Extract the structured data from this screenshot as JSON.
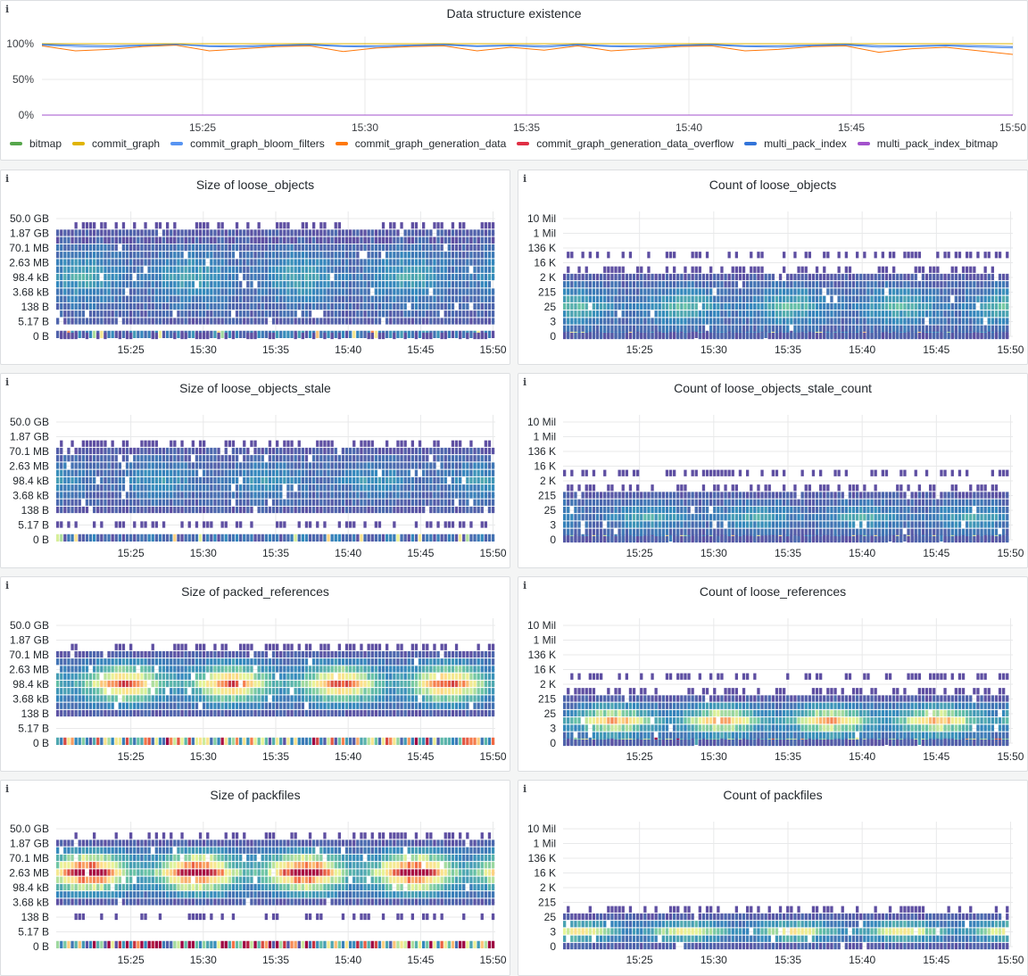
{
  "time_ticks": [
    "15:25",
    "15:30",
    "15:35",
    "15:40",
    "15:45",
    "15:50"
  ],
  "top_panel": {
    "title": "Data structure existence",
    "info_icon": "i",
    "chart_data": {
      "type": "line",
      "title": "Data structure existence",
      "y_ticks": [
        "100%",
        "50%",
        "0%"
      ],
      "ylim": [
        0,
        1
      ],
      "x_ticks": [
        "15:25",
        "15:30",
        "15:35",
        "15:40",
        "15:45",
        "15:50"
      ],
      "series": [
        {
          "name": "bitmap",
          "color": "#56a64b",
          "values": [
            1,
            1,
            1,
            1,
            1,
            1,
            1,
            1,
            1,
            1,
            1,
            1,
            1,
            1,
            1,
            1,
            1,
            1,
            1,
            1,
            1,
            1,
            1,
            1,
            1,
            1,
            1,
            1,
            1,
            1
          ]
        },
        {
          "name": "commit_graph",
          "color": "#e0b400",
          "values": [
            1,
            1,
            1,
            1,
            1,
            1,
            1,
            1,
            1,
            1,
            1,
            1,
            1,
            1,
            1,
            1,
            1,
            1,
            1,
            1,
            1,
            1,
            1,
            1,
            1,
            1,
            1,
            1,
            1,
            1
          ]
        },
        {
          "name": "commit_graph_bloom_filters",
          "color": "#5794f2",
          "values": [
            0.98,
            0.96,
            0.95,
            0.97,
            0.99,
            0.96,
            0.95,
            0.97,
            0.98,
            0.96,
            0.95,
            0.97,
            0.98,
            0.96,
            0.97,
            0.95,
            0.98,
            0.96,
            0.95,
            0.97,
            0.98,
            0.96,
            0.95,
            0.97,
            0.98,
            0.95,
            0.96,
            0.97,
            0.95,
            0.94
          ]
        },
        {
          "name": "commit_graph_generation_data",
          "color": "#ff780a",
          "values": [
            0.97,
            0.9,
            0.92,
            0.96,
            0.98,
            0.9,
            0.93,
            0.96,
            0.97,
            0.89,
            0.94,
            0.96,
            0.97,
            0.9,
            0.95,
            0.91,
            0.97,
            0.9,
            0.93,
            0.96,
            0.97,
            0.9,
            0.92,
            0.96,
            0.97,
            0.88,
            0.93,
            0.95,
            0.9,
            0.85
          ]
        },
        {
          "name": "commit_graph_generation_data_overflow",
          "color": "#e02f44",
          "values": [
            0,
            0,
            0,
            0,
            0,
            0,
            0,
            0,
            0,
            0,
            0,
            0,
            0,
            0,
            0,
            0,
            0,
            0,
            0,
            0,
            0,
            0,
            0,
            0,
            0,
            0,
            0,
            0,
            0,
            0
          ]
        },
        {
          "name": "multi_pack_index",
          "color": "#3274d9",
          "values": [
            0.99,
            0.98,
            0.97,
            0.98,
            0.99,
            0.97,
            0.97,
            0.98,
            0.99,
            0.97,
            0.97,
            0.98,
            0.99,
            0.97,
            0.98,
            0.97,
            0.99,
            0.97,
            0.97,
            0.98,
            0.99,
            0.97,
            0.97,
            0.98,
            0.99,
            0.97,
            0.97,
            0.98,
            0.97,
            0.96
          ]
        },
        {
          "name": "multi_pack_index_bitmap",
          "color": "#a352cc",
          "values": [
            0,
            0,
            0,
            0,
            0,
            0,
            0,
            0,
            0,
            0,
            0,
            0,
            0,
            0,
            0,
            0,
            0,
            0,
            0,
            0,
            0,
            0,
            0,
            0,
            0,
            0,
            0,
            0,
            0,
            0
          ]
        }
      ]
    }
  },
  "size_y_ticks": [
    "50.0 GB",
    "1.87 GB",
    "70.1 MB",
    "2.63 MB",
    "98.4 kB",
    "3.68 kB",
    "138 B",
    "5.17 B",
    "0 B"
  ],
  "count_y_ticks": [
    "10 Mil",
    "1 Mil",
    "136 K",
    "16 K",
    "2 K",
    "215",
    "25",
    "3",
    "0"
  ],
  "panels": [
    {
      "title": "Size of loose_objects",
      "chart_data": {
        "type": "heatmap",
        "title": "Size of loose_objects",
        "y_ticks": [
          "50.0 GB",
          "1.87 GB",
          "70.1 MB",
          "2.63 MB",
          "98.4 kB",
          "3.68 kB",
          "138 B",
          "5.17 B",
          "0 B"
        ],
        "x_ticks": [
          "15:25",
          "15:30",
          "15:35",
          "15:40",
          "15:45",
          "15:50"
        ],
        "band_rows": [
          1,
          7
        ],
        "sparse_top": [
          0,
          1
        ],
        "sparse_bottom": [
          8
        ],
        "zero_row": true,
        "hot_intensity": 0.25
      }
    },
    {
      "title": "Count of loose_objects",
      "chart_data": {
        "type": "heatmap",
        "title": "Count of loose_objects",
        "y_ticks": [
          "10 Mil",
          "1 Mil",
          "136 K",
          "16 K",
          "2 K",
          "215",
          "25",
          "3",
          "0"
        ],
        "x_ticks": [
          "15:25",
          "15:30",
          "15:35",
          "15:40",
          "15:45",
          "15:50"
        ],
        "band_rows": [
          4,
          8
        ],
        "sparse_top": [
          2,
          3
        ],
        "sparse_bottom": [],
        "zero_row": true,
        "hot_intensity": 0.3
      }
    },
    {
      "title": "Size of loose_objects_stale",
      "chart_data": {
        "type": "heatmap",
        "title": "Size of loose_objects_stale",
        "y_ticks": [
          "50.0 GB",
          "1.87 GB",
          "70.1 MB",
          "2.63 MB",
          "98.4 kB",
          "3.68 kB",
          "138 B",
          "5.17 B",
          "0 B"
        ],
        "x_ticks": [
          "15:25",
          "15:30",
          "15:35",
          "15:40",
          "15:45",
          "15:50"
        ],
        "band_rows": [
          2,
          6
        ],
        "sparse_top": [
          1
        ],
        "sparse_bottom": [
          7
        ],
        "zero_row": true,
        "hot_intensity": 0.2
      }
    },
    {
      "title": "Count of loose_objects_stale_count",
      "chart_data": {
        "type": "heatmap",
        "title": "Count of loose_objects_stale_count",
        "y_ticks": [
          "10 Mil",
          "1 Mil",
          "136 K",
          "16 K",
          "2 K",
          "215",
          "25",
          "3",
          "0"
        ],
        "x_ticks": [
          "15:25",
          "15:30",
          "15:35",
          "15:40",
          "15:45",
          "15:50"
        ],
        "band_rows": [
          5,
          8
        ],
        "sparse_top": [
          3,
          4
        ],
        "sparse_bottom": [],
        "zero_row": true,
        "hot_intensity": 0.25
      }
    },
    {
      "title": "Size of packed_references",
      "chart_data": {
        "type": "heatmap",
        "title": "Size of packed_references",
        "y_ticks": [
          "50.0 GB",
          "1.87 GB",
          "70.1 MB",
          "2.63 MB",
          "98.4 kB",
          "3.68 kB",
          "138 B",
          "5.17 B",
          "0 B"
        ],
        "x_ticks": [
          "15:25",
          "15:30",
          "15:35",
          "15:40",
          "15:45",
          "15:50"
        ],
        "band_rows": [
          2,
          6
        ],
        "sparse_top": [
          1
        ],
        "sparse_bottom": [],
        "zero_row": true,
        "hot_intensity": 0.7
      }
    },
    {
      "title": "Count of loose_references",
      "chart_data": {
        "type": "heatmap",
        "title": "Count of loose_references",
        "y_ticks": [
          "10 Mil",
          "1 Mil",
          "136 K",
          "16 K",
          "2 K",
          "215",
          "25",
          "3",
          "0"
        ],
        "x_ticks": [
          "15:25",
          "15:30",
          "15:35",
          "15:40",
          "15:45",
          "15:50"
        ],
        "band_rows": [
          5,
          8
        ],
        "sparse_top": [
          3,
          4
        ],
        "sparse_bottom": [],
        "zero_row": true,
        "hot_intensity": 0.6
      }
    },
    {
      "title": "Size of packfiles",
      "chart_data": {
        "type": "heatmap",
        "title": "Size of packfiles",
        "y_ticks": [
          "50.0 GB",
          "1.87 GB",
          "70.1 MB",
          "2.63 MB",
          "98.4 kB",
          "3.68 kB",
          "138 B",
          "5.17 B",
          "0 B"
        ],
        "x_ticks": [
          "15:25",
          "15:30",
          "15:35",
          "15:40",
          "15:45",
          "15:50"
        ],
        "band_rows": [
          1,
          5
        ],
        "sparse_top": [
          0
        ],
        "sparse_bottom": [
          6
        ],
        "zero_row": true,
        "hot_intensity": 0.85
      }
    },
    {
      "title": "Count of packfiles",
      "chart_data": {
        "type": "heatmap",
        "title": "Count of packfiles",
        "y_ticks": [
          "10 Mil",
          "1 Mil",
          "136 K",
          "16 K",
          "2 K",
          "215",
          "25",
          "3",
          "0"
        ],
        "x_ticks": [
          "15:25",
          "15:30",
          "15:35",
          "15:40",
          "15:45",
          "15:50"
        ],
        "band_rows": [
          6,
          8
        ],
        "sparse_top": [
          5
        ],
        "sparse_bottom": [],
        "zero_row": false,
        "hot_intensity": 0.5
      }
    }
  ]
}
